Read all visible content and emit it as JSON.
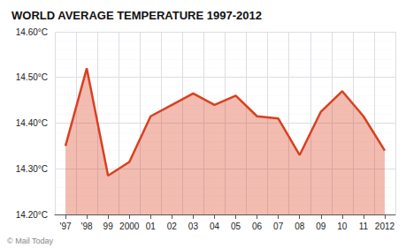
{
  "chart_data": {
    "type": "line",
    "title": "WORLD AVERAGE TEMPERATURE 1997-2012",
    "categories": [
      "'97",
      "'98",
      "99",
      "2000",
      "01",
      "02",
      "03",
      "04",
      "05",
      "06",
      "07",
      "08",
      "09",
      "10",
      "11",
      "2012"
    ],
    "values": [
      14.35,
      14.52,
      14.285,
      14.315,
      14.415,
      14.44,
      14.465,
      14.44,
      14.46,
      14.415,
      14.41,
      14.33,
      14.425,
      14.47,
      14.415,
      14.34
    ],
    "color": "#d94020",
    "ylim": [
      14.2,
      14.6
    ],
    "yticks": [
      {
        "value": 14.2,
        "label": "14.20°C"
      },
      {
        "value": 14.3,
        "label": "14.30°C"
      },
      {
        "value": 14.4,
        "label": "14.40°C"
      },
      {
        "value": 14.5,
        "label": "14.50°C"
      },
      {
        "value": 14.6,
        "label": "14.60°C"
      }
    ],
    "grid": true,
    "annotations": [
      "© Mail Today"
    ]
  }
}
